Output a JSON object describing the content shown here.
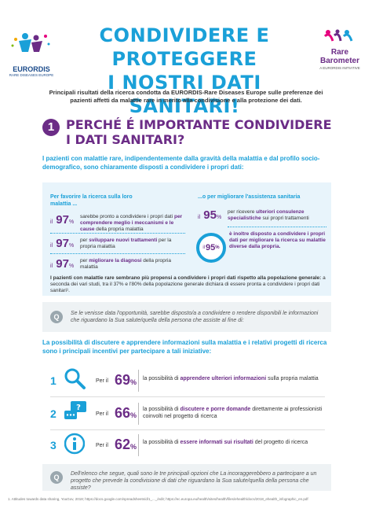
{
  "header": {
    "title_line1": "CONDIVIDERE E PROTEGGERE",
    "title_line2": "I NOSTRI DATI SANITARI!",
    "logo_left_name": "EURORDIS",
    "logo_left_tagline": "RARE DISEASES EUROPE",
    "logo_right_name_1": "Rare",
    "logo_right_name_2": "Barometer",
    "logo_right_tagline": "A EURORDIS INITIATIVE"
  },
  "intro": "Principali risultati della ricerca condotta da EURORDIS-Rare Diseases Europe sulle preferenze dei pazienti affetti da malattie rare in merito alla condivisione e alla protezione dei dati.",
  "section1": {
    "number": "1",
    "title_line1": "PERCHÉ É IMPORTANTE CONDIVIDERE",
    "title_line2": "I DATI SANITARI?",
    "lead": "I pazienti con malattie rare, indipendentemente dalla gravità della malattia e dal profilo socio-demografico, sono chiaramente disposti a condividere i propri dati:",
    "left_heading": "Per favorire la ricerca sulla loro malattia ...",
    "right_heading": "...o per migliorare l'assistenza sanitaria",
    "left_stats": [
      {
        "prefix": "il",
        "value": "97",
        "unit": "%",
        "text_pre": "sarebbe pronto a condividere i propri dati ",
        "text_bold": "per comprendere meglio i meccanismi e le cause",
        "text_post": " della propria malattia"
      },
      {
        "prefix": "il",
        "value": "97",
        "unit": "%",
        "text_pre": "per ",
        "text_bold": "sviluppare nuovi trattamenti",
        "text_post": " per la propria malattia"
      },
      {
        "prefix": "il",
        "value": "97",
        "unit": "%",
        "text_pre": "per ",
        "text_bold": "migliorare la diagnosi",
        "text_post": " della propria malattia"
      }
    ],
    "right_stats": [
      {
        "prefix": "il",
        "value": "95",
        "unit": "%",
        "text_pre": "per ricevere ",
        "text_bold": "ulteriori consulenze specialistiche",
        "text_post": " sui propri trattamenti"
      },
      {
        "prefix": "il",
        "value": "95",
        "unit": "%",
        "text_pre": "",
        "text_bold": "è inoltre disposto a condividere i propri dati per migliorare la ricerca su malattie diverse dalla propria.",
        "text_post": ""
      }
    ],
    "summary_bold": "I pazienti con malattie rare sembrano più propensi a condividere i propri dati rispetto alla popolazione generale:",
    "summary_rest": " a seconda dei vari studi, tra il 37% e l'80% della popolazione generale dichiara di essere pronta a condividere i propri dati sanitari¹.",
    "question": "Se le venisse data l'opportunità, sarebbe disposto/a a condividere o rendere disponibili le informazioni che riguardano la Sua salute/quella della persona che assiste al fine di:"
  },
  "section2": {
    "lead": "La possibilità di discutere e apprendere informazioni sulla malattia e i relativi progetti di ricerca sono i principali incentivi per partecipare a tali iniziative:",
    "rows": [
      {
        "n": "1",
        "per": "Per il",
        "value": "69",
        "unit": "%",
        "text_pre": "la possibilità di ",
        "text_bold": "apprendere ulteriori informazioni",
        "text_post": " sulla propria malattia"
      },
      {
        "n": "2",
        "per": "Per il",
        "value": "66",
        "unit": "%",
        "text_pre": "la possibilità di ",
        "text_bold": "discutere e porre domande",
        "text_post": " direttamente ai professionisti coinvolti nel progetto di ricerca"
      },
      {
        "n": "3",
        "per": "Per il",
        "value": "62",
        "unit": "%",
        "text_pre": "la possibilità di ",
        "text_bold": "essere informati sui risultati",
        "text_post": " del progetto di ricerca"
      }
    ],
    "question": "Dell'elenco che segue, quali sono le tre principali opzioni che La incoraggerebbero a partecipare a un progetto che prevede la condivisione di dati che riguardano la Sua salute/quella della persona che assiste?"
  },
  "footnote": "1. Attitudes towards data sharing, YouGov, 2018; https://docs.google.com/spreadsheets/d/1_..._/edit; https://ec.europa.eu/health/sites/health/files/ehealth/docs/2018_ehealth_infographic_en.pdf",
  "colors": {
    "blue": "#1aa0d8",
    "purple": "#6b2c86",
    "light_blue_bg": "#e8f4fb"
  }
}
